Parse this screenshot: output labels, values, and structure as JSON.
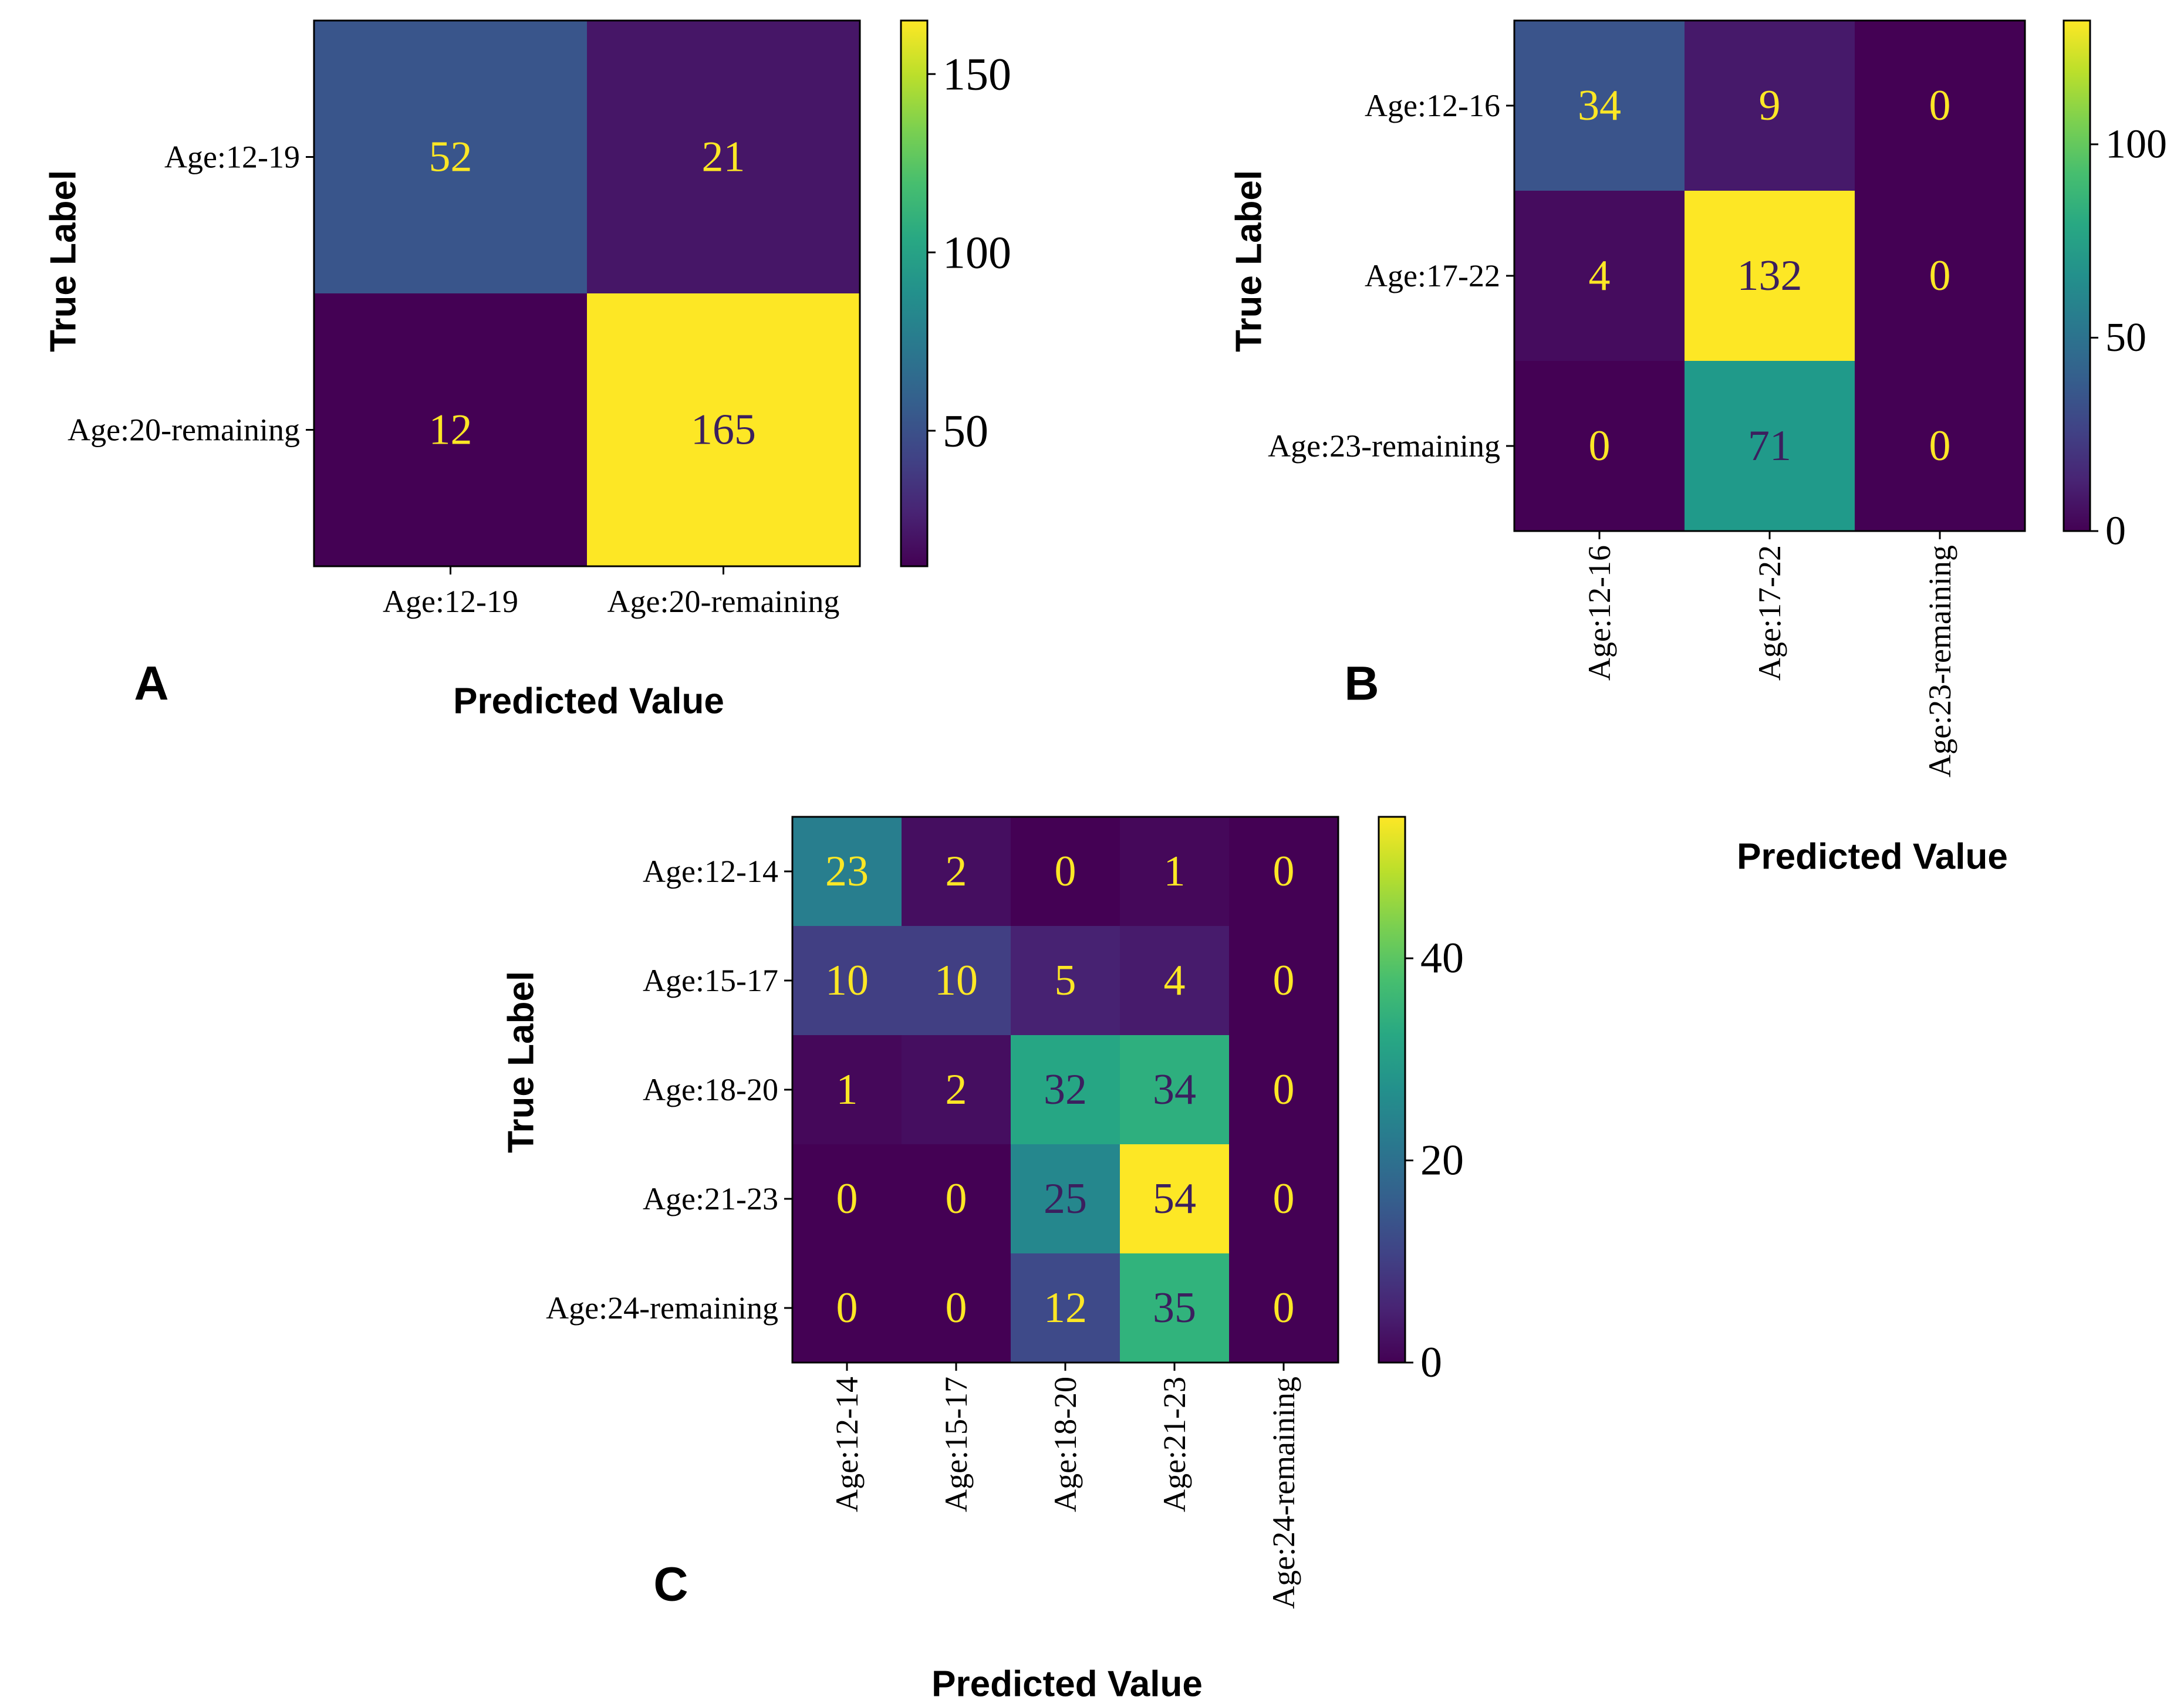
{
  "chart_data": [
    {
      "type": "heatmap",
      "panel_label": "A",
      "xlabel": "Predicted Value",
      "ylabel": "True Label",
      "row_labels": [
        "Age:12-19",
        "Age:20-remaining"
      ],
      "col_labels": [
        "Age:12-19",
        "Age:20-remaining"
      ],
      "matrix": [
        [
          52,
          21
        ],
        [
          12,
          165
        ]
      ],
      "colorbar_range": [
        12,
        165
      ],
      "colorbar_ticks": [
        50,
        100,
        150
      ],
      "colormap": "viridis"
    },
    {
      "type": "heatmap",
      "panel_label": "B",
      "xlabel": "Predicted Value",
      "ylabel": "True Label",
      "row_labels": [
        "Age:12-16",
        "Age:17-22",
        "Age:23-remaining"
      ],
      "col_labels": [
        "Age:12-16",
        "Age:17-22",
        "Age:23-remaining"
      ],
      "matrix": [
        [
          34,
          9,
          0
        ],
        [
          4,
          132,
          0
        ],
        [
          0,
          71,
          0
        ]
      ],
      "colorbar_range": [
        0,
        132
      ],
      "colorbar_ticks": [
        0,
        50,
        100
      ],
      "colormap": "viridis"
    },
    {
      "type": "heatmap",
      "panel_label": "C",
      "xlabel": "Predicted Value",
      "ylabel": "True Label",
      "row_labels": [
        "Age:12-14",
        "Age:15-17",
        "Age:18-20",
        "Age:21-23",
        "Age:24-remaining"
      ],
      "col_labels": [
        "Age:12-14",
        "Age:15-17",
        "Age:18-20",
        "Age:21-23",
        "Age:24-remaining"
      ],
      "matrix": [
        [
          23,
          2,
          0,
          1,
          0
        ],
        [
          10,
          10,
          5,
          4,
          0
        ],
        [
          1,
          2,
          32,
          34,
          0
        ],
        [
          0,
          0,
          25,
          54,
          0
        ],
        [
          0,
          0,
          12,
          35,
          0
        ]
      ],
      "colorbar_range": [
        0,
        54
      ],
      "colorbar_ticks": [
        0,
        20,
        40
      ],
      "colormap": "viridis"
    }
  ],
  "colors": {
    "low_text": "#fde725",
    "high_text": "#3b1f5e",
    "axis": "#000000"
  }
}
